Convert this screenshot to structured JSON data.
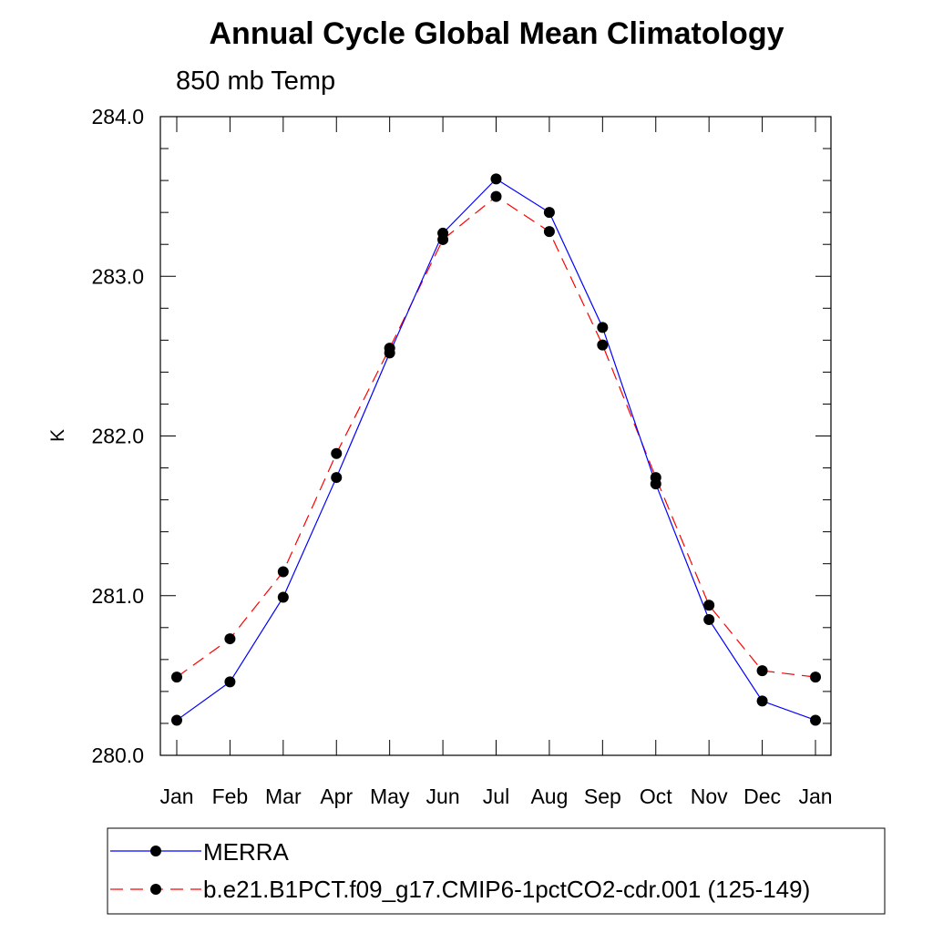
{
  "chart_data": {
    "type": "line",
    "title": "Annual Cycle Global Mean Climatology",
    "subtitle": "850 mb Temp",
    "ylabel": "K",
    "xlabel": "",
    "categories": [
      "Jan",
      "Feb",
      "Mar",
      "Apr",
      "May",
      "Jun",
      "Jul",
      "Aug",
      "Sep",
      "Oct",
      "Nov",
      "Dec",
      "Jan"
    ],
    "ylim": [
      280.0,
      284.0
    ],
    "yticks": [
      "280.0",
      "281.0",
      "282.0",
      "283.0",
      "284.0"
    ],
    "grid": false,
    "legend_position": "bottom",
    "series": [
      {
        "name": "MERRA",
        "color": "#0000ff",
        "line_style": "solid",
        "marker": "filled-circle",
        "values": [
          280.22,
          280.46,
          280.99,
          281.74,
          282.52,
          283.27,
          283.61,
          283.4,
          282.68,
          281.7,
          280.85,
          280.34,
          280.22
        ]
      },
      {
        "name": "b.e21.B1PCT.f09_g17.CMIP6-1pctCO2-cdr.001 (125-149)",
        "color": "#ff0000",
        "line_style": "dashed",
        "marker": "filled-circle",
        "values": [
          280.49,
          280.73,
          281.15,
          281.89,
          282.55,
          283.23,
          283.5,
          283.28,
          282.57,
          281.74,
          280.94,
          280.53,
          280.49
        ]
      }
    ]
  }
}
